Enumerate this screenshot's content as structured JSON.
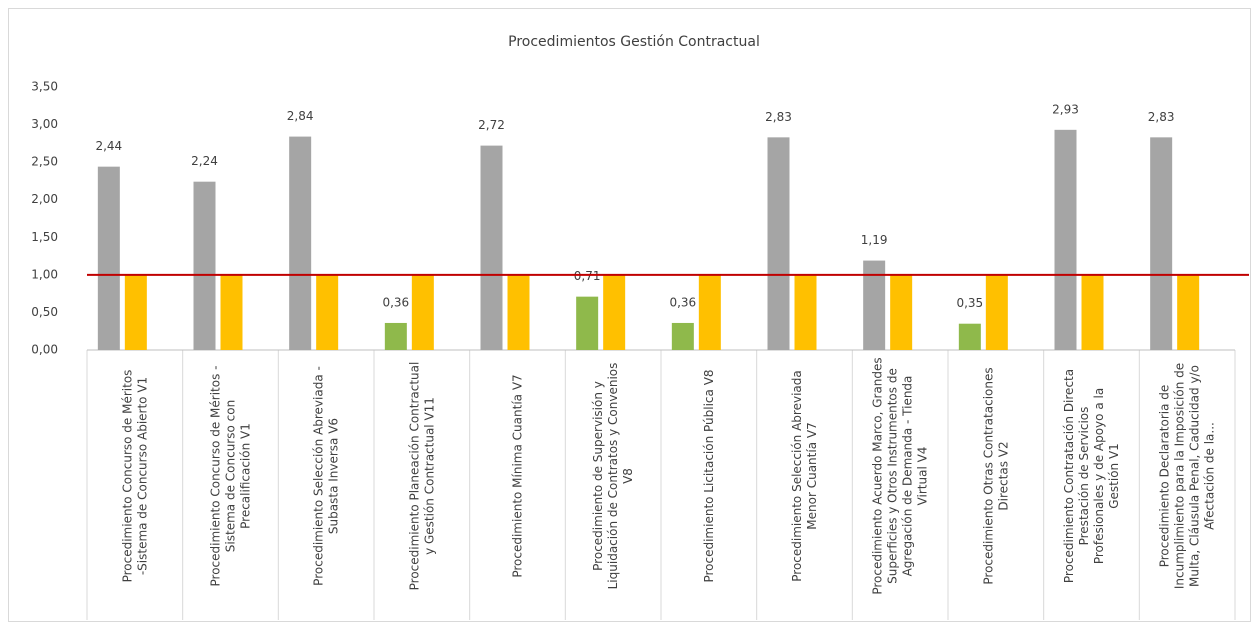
{
  "chart_data": {
    "type": "bar",
    "title": "Procedimientos Gestión Contractual",
    "categories": [
      "Procedimiento Concurso de Méritos -Sistema de Concurso Abierto V1",
      "Procedimiento Concurso de Méritos - Sistema de Concurso con Precalificación V1",
      "Procedimiento Selección Abreviada - Subasta Inversa V6",
      "Procedimiento Planeación Contractual y Gestión Contractual V11",
      "Procedimiento Mínima Cuantía V7",
      "Procedimiento de Supervisión y Liquidación de Contratos y Convenios V8",
      "Procedimiento Licitación Pública V8",
      "Procedimiento Selección Abreviada Menor Cuantía V7",
      "Procedimiento Acuerdo Marco, Grandes Superficies y Otros Instrumentos de Agregación de Demanda - Tienda Virtual V4",
      "Procedimiento Otras Contrataciones Directas V2",
      "Procedimiento Contratación Directa Prestación de Servicios Profesionales y de Apoyo a la Gestión V1",
      "Procedimiento Declaratoria de Incumplimiento para la Imposición de Multa, Cláusula Penal, Caducidad y/o Afectación de la..."
    ],
    "series": [
      {
        "colors": [
          "#a5a5a5",
          "#a5a5a5",
          "#a5a5a5",
          "#8fb94b",
          "#a5a5a5",
          "#8fb94b",
          "#8fb94b",
          "#a5a5a5",
          "#a5a5a5",
          "#8fb94b",
          "#a5a5a5",
          "#a5a5a5"
        ],
        "values": [
          2.44,
          2.24,
          2.84,
          0.36,
          2.72,
          0.71,
          0.36,
          2.83,
          1.19,
          0.35,
          2.93,
          2.83
        ],
        "value_labels": [
          "2,44",
          "2,24",
          "2,84",
          "0,36",
          "2,72",
          "0,71",
          "0,36",
          "2,83",
          "1,19",
          "0,35",
          "2,93",
          "2,83"
        ]
      },
      {
        "color": "#ffc000",
        "values": [
          1,
          1,
          1,
          1,
          1,
          1,
          1,
          1,
          1,
          1,
          1,
          1
        ]
      }
    ],
    "reference_line": {
      "value": 1,
      "color": "#c00000"
    },
    "ylim": [
      0,
      3.5
    ],
    "yticks": [
      {
        "value": 0,
        "label": "0,00"
      },
      {
        "value": 0.5,
        "label": "0,50"
      },
      {
        "value": 1,
        "label": "1,00"
      },
      {
        "value": 1.5,
        "label": "1,50"
      },
      {
        "value": 2,
        "label": "2,00"
      },
      {
        "value": 2.5,
        "label": "2,50"
      },
      {
        "value": 3,
        "label": "3,00"
      },
      {
        "value": 3.5,
        "label": "3,50"
      }
    ]
  }
}
